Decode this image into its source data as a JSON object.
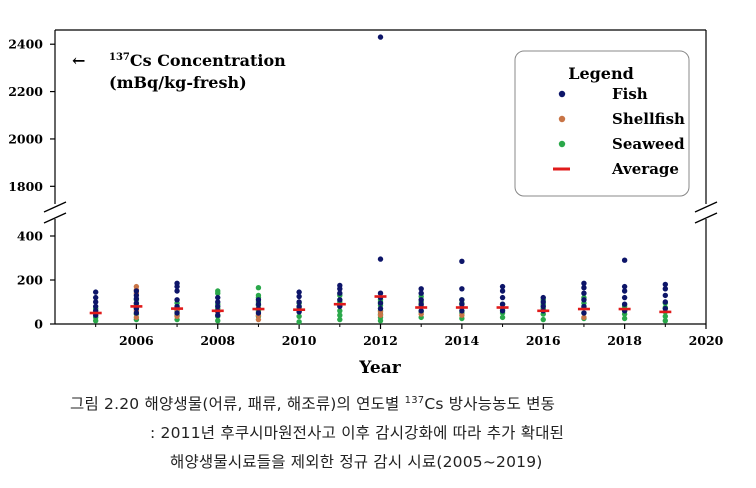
{
  "chart_data": {
    "type": "scatter",
    "annotation": {
      "arrow": "←",
      "sup": "137",
      "line1": "Cs Concentration",
      "line2": "(mBq/kg-fresh)"
    },
    "xlabel": "Year",
    "x_ticks": [
      "2006",
      "2008",
      "2010",
      "2012",
      "2014",
      "2016",
      "2018",
      "2020"
    ],
    "y_ticks_upper": [
      "1800",
      "2000",
      "2200",
      "2400"
    ],
    "y_ticks_lower": [
      "0",
      "200",
      "400"
    ],
    "xlim": [
      2004,
      2020
    ],
    "ylim_lower": [
      0,
      450
    ],
    "ylim_upper": [
      1700,
      2460
    ],
    "broken_axis": true,
    "legend": {
      "title": "Legend",
      "position": "top-right",
      "entries": [
        "Fish",
        "Shellfish",
        "Seaweed",
        "Average"
      ]
    },
    "colors": {
      "fish": "#0d1569",
      "shellfish": "#c87446",
      "seaweed": "#2aa84a",
      "average": "#e01a1a"
    },
    "series": [
      {
        "name": "Fish",
        "points": [
          [
            2005,
            145
          ],
          [
            2005,
            120
          ],
          [
            2005,
            100
          ],
          [
            2005,
            80
          ],
          [
            2005,
            60
          ],
          [
            2005,
            40
          ],
          [
            2006,
            150
          ],
          [
            2006,
            130
          ],
          [
            2006,
            115
          ],
          [
            2006,
            95
          ],
          [
            2006,
            70
          ],
          [
            2006,
            50
          ],
          [
            2007,
            185
          ],
          [
            2007,
            170
          ],
          [
            2007,
            150
          ],
          [
            2007,
            110
          ],
          [
            2007,
            80
          ],
          [
            2007,
            50
          ],
          [
            2008,
            120
          ],
          [
            2008,
            100
          ],
          [
            2008,
            80
          ],
          [
            2008,
            60
          ],
          [
            2008,
            40
          ],
          [
            2009,
            110
          ],
          [
            2009,
            90
          ],
          [
            2009,
            70
          ],
          [
            2009,
            50
          ],
          [
            2010,
            145
          ],
          [
            2010,
            125
          ],
          [
            2010,
            100
          ],
          [
            2010,
            80
          ],
          [
            2010,
            55
          ],
          [
            2011,
            175
          ],
          [
            2011,
            160
          ],
          [
            2011,
            140
          ],
          [
            2011,
            110
          ],
          [
            2011,
            80
          ],
          [
            2012,
            2430
          ],
          [
            2012,
            295
          ],
          [
            2012,
            140
          ],
          [
            2012,
            120
          ],
          [
            2012,
            95
          ],
          [
            2012,
            70
          ],
          [
            2013,
            160
          ],
          [
            2013,
            140
          ],
          [
            2013,
            110
          ],
          [
            2013,
            90
          ],
          [
            2013,
            60
          ],
          [
            2014,
            285
          ],
          [
            2014,
            160
          ],
          [
            2014,
            110
          ],
          [
            2014,
            90
          ],
          [
            2014,
            60
          ],
          [
            2015,
            170
          ],
          [
            2015,
            150
          ],
          [
            2015,
            120
          ],
          [
            2015,
            90
          ],
          [
            2015,
            60
          ],
          [
            2016,
            120
          ],
          [
            2016,
            100
          ],
          [
            2016,
            80
          ],
          [
            2016,
            60
          ],
          [
            2017,
            185
          ],
          [
            2017,
            165
          ],
          [
            2017,
            140
          ],
          [
            2017,
            110
          ],
          [
            2017,
            80
          ],
          [
            2017,
            50
          ],
          [
            2018,
            290
          ],
          [
            2018,
            170
          ],
          [
            2018,
            150
          ],
          [
            2018,
            120
          ],
          [
            2018,
            90
          ],
          [
            2018,
            60
          ],
          [
            2019,
            180
          ],
          [
            2019,
            160
          ],
          [
            2019,
            130
          ],
          [
            2019,
            100
          ],
          [
            2019,
            70
          ]
        ]
      },
      {
        "name": "Shellfish",
        "points": [
          [
            2006,
            170
          ],
          [
            2006,
            155
          ],
          [
            2006,
            140
          ],
          [
            2006,
            60
          ],
          [
            2006,
            30
          ],
          [
            2007,
            65
          ],
          [
            2007,
            35
          ],
          [
            2008,
            55
          ],
          [
            2009,
            40
          ],
          [
            2009,
            20
          ],
          [
            2012,
            55
          ],
          [
            2012,
            40
          ],
          [
            2013,
            45
          ],
          [
            2014,
            40
          ],
          [
            2017,
            30
          ]
        ]
      },
      {
        "name": "Seaweed",
        "points": [
          [
            2005,
            70
          ],
          [
            2005,
            50
          ],
          [
            2005,
            30
          ],
          [
            2005,
            15
          ],
          [
            2006,
            110
          ],
          [
            2006,
            90
          ],
          [
            2006,
            75
          ],
          [
            2006,
            45
          ],
          [
            2006,
            20
          ],
          [
            2007,
            95
          ],
          [
            2007,
            75
          ],
          [
            2007,
            60
          ],
          [
            2007,
            40
          ],
          [
            2007,
            20
          ],
          [
            2008,
            150
          ],
          [
            2008,
            140
          ],
          [
            2008,
            90
          ],
          [
            2008,
            70
          ],
          [
            2008,
            35
          ],
          [
            2008,
            15
          ],
          [
            2009,
            165
          ],
          [
            2009,
            130
          ],
          [
            2009,
            120
          ],
          [
            2009,
            100
          ],
          [
            2009,
            85
          ],
          [
            2009,
            60
          ],
          [
            2009,
            35
          ],
          [
            2010,
            95
          ],
          [
            2010,
            75
          ],
          [
            2010,
            60
          ],
          [
            2010,
            35
          ],
          [
            2010,
            10
          ],
          [
            2011,
            130
          ],
          [
            2011,
            100
          ],
          [
            2011,
            85
          ],
          [
            2011,
            60
          ],
          [
            2011,
            40
          ],
          [
            2011,
            20
          ],
          [
            2012,
            110
          ],
          [
            2012,
            100
          ],
          [
            2012,
            85
          ],
          [
            2012,
            60
          ],
          [
            2012,
            45
          ],
          [
            2012,
            30
          ],
          [
            2012,
            15
          ],
          [
            2013,
            125
          ],
          [
            2013,
            100
          ],
          [
            2013,
            80
          ],
          [
            2013,
            55
          ],
          [
            2013,
            30
          ],
          [
            2014,
            110
          ],
          [
            2014,
            95
          ],
          [
            2014,
            75
          ],
          [
            2014,
            50
          ],
          [
            2014,
            25
          ],
          [
            2015,
            90
          ],
          [
            2015,
            70
          ],
          [
            2015,
            50
          ],
          [
            2015,
            30
          ],
          [
            2016,
            110
          ],
          [
            2016,
            90
          ],
          [
            2016,
            70
          ],
          [
            2016,
            45
          ],
          [
            2016,
            20
          ],
          [
            2017,
            120
          ],
          [
            2017,
            95
          ],
          [
            2017,
            75
          ],
          [
            2017,
            50
          ],
          [
            2017,
            25
          ],
          [
            2018,
            80
          ],
          [
            2018,
            60
          ],
          [
            2018,
            45
          ],
          [
            2018,
            25
          ],
          [
            2019,
            95
          ],
          [
            2019,
            75
          ],
          [
            2019,
            55
          ],
          [
            2019,
            35
          ],
          [
            2019,
            15
          ]
        ]
      },
      {
        "name": "Average",
        "points": [
          [
            2005,
            50
          ],
          [
            2006,
            80
          ],
          [
            2007,
            70
          ],
          [
            2008,
            60
          ],
          [
            2009,
            68
          ],
          [
            2010,
            65
          ],
          [
            2011,
            90
          ],
          [
            2012,
            125
          ],
          [
            2013,
            75
          ],
          [
            2014,
            75
          ],
          [
            2015,
            75
          ],
          [
            2016,
            60
          ],
          [
            2017,
            68
          ],
          [
            2018,
            68
          ],
          [
            2019,
            55
          ]
        ]
      }
    ]
  },
  "caption": {
    "line1_prefix": "그림 2.20 해양생물(어류, 패류, 해조류)의 연도별 ",
    "line1_sup": "137",
    "line1_suffix": "Cs 방사능농도 변동",
    "line2": ": 2011년 후쿠시마원전사고 이후 감시강화에 따라 추가 확대된",
    "line3": "해양생물시료들을 제외한 정규 감시 시료(2005~2019)"
  }
}
